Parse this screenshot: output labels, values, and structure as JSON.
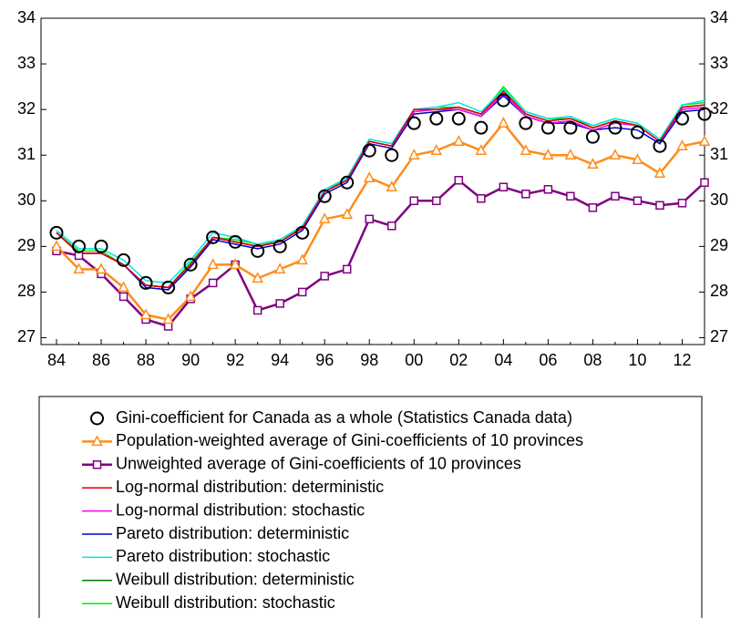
{
  "chart_data": {
    "type": "line",
    "categories": [
      "84",
      null,
      "86",
      null,
      "88",
      null,
      "90",
      null,
      "92",
      null,
      "94",
      null,
      "96",
      null,
      "98",
      null,
      "00",
      null,
      "02",
      null,
      "04",
      null,
      "06",
      null,
      "08",
      null,
      "10",
      null,
      "12",
      null
    ],
    "ylim": [
      26.85,
      34
    ],
    "yticks": [
      27,
      28,
      29,
      30,
      31,
      32,
      33,
      34
    ],
    "y2lim": [
      26.85,
      34
    ],
    "y2ticks": [
      27,
      28,
      29,
      30,
      31,
      32,
      33,
      34
    ],
    "series": [
      {
        "name": "Gini-coefficient for Canada as a whole (Statistics Canada data)",
        "color": "#000000",
        "marker": "circle",
        "line": false,
        "values": [
          29.3,
          29.0,
          29.0,
          28.7,
          28.2,
          28.1,
          28.6,
          29.2,
          29.1,
          28.9,
          29.0,
          29.3,
          30.1,
          30.4,
          31.1,
          31.0,
          31.7,
          31.8,
          31.8,
          31.6,
          32.2,
          31.7,
          31.6,
          31.6,
          31.4,
          31.6,
          31.5,
          31.2,
          31.8,
          31.9
        ]
      },
      {
        "name": "Population-weighted average of Gini-coefficients of 10 provinces",
        "color": "#ff8c1a",
        "marker": "triangle",
        "line": true,
        "values": [
          29.0,
          28.5,
          28.5,
          28.1,
          27.5,
          27.4,
          27.9,
          28.6,
          28.6,
          28.3,
          28.5,
          28.7,
          29.6,
          29.7,
          30.5,
          30.3,
          31.0,
          31.1,
          31.3,
          31.1,
          31.7,
          31.1,
          31.0,
          31.0,
          30.8,
          31.0,
          30.9,
          30.6,
          31.2,
          31.3
        ]
      },
      {
        "name": "Unweighted average of Gini-coefficients of 10 provinces",
        "color": "#800080",
        "marker": "square",
        "line": true,
        "values": [
          28.9,
          28.8,
          28.4,
          27.9,
          27.4,
          27.25,
          27.85,
          28.2,
          28.6,
          27.6,
          27.75,
          28.0,
          28.35,
          28.5,
          29.6,
          29.45,
          30.0,
          30.0,
          30.45,
          30.05,
          30.3,
          30.15,
          30.25,
          30.1,
          29.85,
          30.1,
          30.0,
          29.9,
          29.95,
          30.4
        ]
      },
      {
        "name": "Log-normal distribution: deterministic",
        "color": "#e00000",
        "line": true,
        "values": [
          29.3,
          28.85,
          28.85,
          28.6,
          28.15,
          28.1,
          28.6,
          29.2,
          29.1,
          29.0,
          29.1,
          29.4,
          30.2,
          30.45,
          31.3,
          31.2,
          32.0,
          32.0,
          32.05,
          31.9,
          32.4,
          31.9,
          31.75,
          31.8,
          31.6,
          31.75,
          31.65,
          31.3,
          32.05,
          32.1
        ]
      },
      {
        "name": "Log-normal distribution: stochastic",
        "color": "#ff00ff",
        "line": true,
        "values": [
          29.3,
          28.85,
          28.85,
          28.6,
          28.15,
          28.1,
          28.6,
          29.2,
          29.1,
          29.0,
          29.1,
          29.4,
          30.2,
          30.45,
          31.3,
          31.2,
          31.95,
          32.0,
          32.0,
          31.85,
          32.35,
          31.85,
          31.7,
          31.75,
          31.55,
          31.7,
          31.65,
          31.3,
          32.0,
          32.05
        ]
      },
      {
        "name": "Pareto distribution: deterministic",
        "color": "#0000cc",
        "line": true,
        "values": [
          29.3,
          28.85,
          28.85,
          28.6,
          28.1,
          28.05,
          28.55,
          29.15,
          29.05,
          28.95,
          29.05,
          29.35,
          30.15,
          30.4,
          31.25,
          31.15,
          31.9,
          31.95,
          32.0,
          31.85,
          32.3,
          31.85,
          31.7,
          31.7,
          31.55,
          31.6,
          31.55,
          31.25,
          31.95,
          32.0
        ]
      },
      {
        "name": "Pareto distribution: stochastic",
        "color": "#00e5ee",
        "line": true,
        "values": [
          29.35,
          28.95,
          28.95,
          28.7,
          28.25,
          28.2,
          28.7,
          29.3,
          29.2,
          29.05,
          29.15,
          29.45,
          30.25,
          30.5,
          31.35,
          31.25,
          32.0,
          32.05,
          32.15,
          31.95,
          32.45,
          31.95,
          31.8,
          31.85,
          31.65,
          31.8,
          31.7,
          31.35,
          32.1,
          32.2
        ]
      },
      {
        "name": "Weibull distribution: deterministic",
        "color": "#007f00",
        "line": true,
        "values": [
          29.3,
          28.85,
          28.85,
          28.6,
          28.15,
          28.1,
          28.6,
          29.2,
          29.1,
          29.0,
          29.1,
          29.4,
          30.2,
          30.45,
          31.3,
          31.2,
          32.0,
          32.0,
          32.05,
          31.9,
          32.4,
          31.9,
          31.75,
          31.8,
          31.6,
          31.75,
          31.65,
          31.3,
          32.05,
          32.1
        ]
      },
      {
        "name": "Weibull distribution: stochastic",
        "color": "#00ee00",
        "line": true,
        "values": [
          29.3,
          28.9,
          28.9,
          28.6,
          28.15,
          28.1,
          28.65,
          29.2,
          29.15,
          29.05,
          29.1,
          29.45,
          30.2,
          30.5,
          31.35,
          31.25,
          32.0,
          32.05,
          32.05,
          31.9,
          32.5,
          31.95,
          31.8,
          31.8,
          31.65,
          31.8,
          31.7,
          31.35,
          32.1,
          32.15
        ]
      }
    ]
  }
}
